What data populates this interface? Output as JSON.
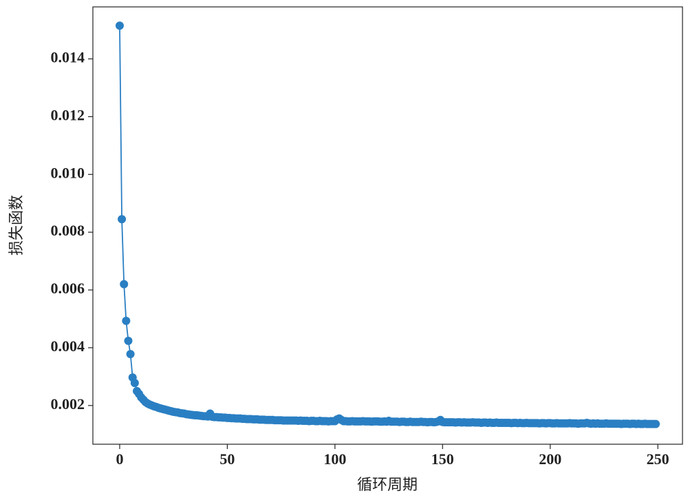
{
  "chart_data": {
    "type": "line",
    "x_label": "循环周期",
    "y_label": "损失函数",
    "xlim": [
      -12.45,
      261.45
    ],
    "ylim": [
      0.00066,
      0.0158
    ],
    "xticks": [
      0,
      50,
      100,
      150,
      200,
      250
    ],
    "yticks": [
      0.002,
      0.004,
      0.006,
      0.008,
      {
        "value": 0.01,
        "label": "0.010"
      },
      0.012,
      0.014
    ],
    "grid": false,
    "x": [
      0,
      1,
      2,
      3,
      4,
      5,
      6,
      7,
      8,
      9,
      10,
      11,
      12,
      13,
      14,
      15,
      16,
      17,
      18,
      19,
      20,
      21,
      22,
      23,
      24,
      25,
      26,
      27,
      28,
      29,
      30,
      31,
      32,
      33,
      34,
      35,
      36,
      37,
      38,
      39,
      40,
      41,
      42,
      43,
      44,
      45,
      46,
      47,
      48,
      49,
      50,
      51,
      52,
      53,
      54,
      55,
      56,
      57,
      58,
      59,
      60,
      61,
      62,
      63,
      64,
      65,
      66,
      67,
      68,
      69,
      70,
      71,
      72,
      73,
      74,
      75,
      76,
      77,
      78,
      79,
      80,
      81,
      82,
      83,
      84,
      85,
      86,
      87,
      88,
      89,
      90,
      91,
      92,
      93,
      94,
      95,
      96,
      97,
      98,
      99,
      100,
      101,
      102,
      103,
      104,
      105,
      106,
      107,
      108,
      109,
      110,
      111,
      112,
      113,
      114,
      115,
      116,
      117,
      118,
      119,
      120,
      121,
      122,
      123,
      124,
      125,
      126,
      127,
      128,
      129,
      130,
      131,
      132,
      133,
      134,
      135,
      136,
      137,
      138,
      139,
      140,
      141,
      142,
      143,
      144,
      145,
      146,
      147,
      148,
      149,
      150,
      151,
      152,
      153,
      154,
      155,
      156,
      157,
      158,
      159,
      160,
      161,
      162,
      163,
      164,
      165,
      166,
      167,
      168,
      169,
      170,
      171,
      172,
      173,
      174,
      175,
      176,
      177,
      178,
      179,
      180,
      181,
      182,
      183,
      184,
      185,
      186,
      187,
      188,
      189,
      190,
      191,
      192,
      193,
      194,
      195,
      196,
      197,
      198,
      199,
      200,
      201,
      202,
      203,
      204,
      205,
      206,
      207,
      208,
      209,
      210,
      211,
      212,
      213,
      214,
      215,
      216,
      217,
      218,
      219,
      220,
      221,
      222,
      223,
      224,
      225,
      226,
      227,
      228,
      229,
      230,
      231,
      232,
      233,
      234,
      235,
      236,
      237,
      238,
      239,
      240,
      241,
      242,
      243,
      244,
      245,
      246,
      247,
      248,
      249
    ],
    "series": [
      {
        "color": "#2a7fc3",
        "values": [
          0.01515,
          0.00845,
          0.0062,
          0.00493,
          0.00424,
          0.00378,
          0.00297,
          0.00278,
          0.0025,
          0.0024,
          0.00228,
          0.0022,
          0.00212,
          0.00207,
          0.00203,
          0.002,
          0.00197,
          0.00195,
          0.00192,
          0.0019,
          0.00188,
          0.00186,
          0.00184,
          0.00182,
          0.0018,
          0.00178,
          0.00177,
          0.00176,
          0.00174,
          0.00173,
          0.00172,
          0.0017,
          0.00169,
          0.00168,
          0.00167,
          0.00166,
          0.00166,
          0.00165,
          0.00164,
          0.00163,
          0.00163,
          0.00162,
          0.00172,
          0.00161,
          0.0016,
          0.0016,
          0.00159,
          0.00159,
          0.00158,
          0.00158,
          0.00157,
          0.00157,
          0.00156,
          0.00156,
          0.00155,
          0.00155,
          0.00155,
          0.00154,
          0.00154,
          0.00153,
          0.00153,
          0.00153,
          0.00152,
          0.00152,
          0.00152,
          0.00151,
          0.00151,
          0.00151,
          0.0015,
          0.0015,
          0.0015,
          0.0015,
          0.00149,
          0.00149,
          0.00149,
          0.00149,
          0.00148,
          0.00148,
          0.00148,
          0.00148,
          0.00148,
          0.00148,
          0.00148,
          0.00147,
          0.00148,
          0.00147,
          0.00147,
          0.00147,
          0.00146,
          0.00147,
          0.00147,
          0.00146,
          0.00146,
          0.00147,
          0.00146,
          0.00146,
          0.00146,
          0.00145,
          0.00146,
          0.00146,
          0.00146,
          0.00152,
          0.00155,
          0.0015,
          0.00146,
          0.00146,
          0.00145,
          0.00145,
          0.00146,
          0.00145,
          0.00145,
          0.00145,
          0.00145,
          0.00146,
          0.00145,
          0.00145,
          0.00145,
          0.00144,
          0.00145,
          0.00145,
          0.00145,
          0.00144,
          0.00144,
          0.00145,
          0.00144,
          0.00147,
          0.00144,
          0.00144,
          0.00144,
          0.00144,
          0.00143,
          0.00144,
          0.00144,
          0.00143,
          0.00143,
          0.00144,
          0.00143,
          0.00143,
          0.00143,
          0.00143,
          0.00144,
          0.00143,
          0.00143,
          0.00142,
          0.00143,
          0.00143,
          0.00142,
          0.00143,
          0.00145,
          0.0015,
          0.00143,
          0.00142,
          0.00142,
          0.00142,
          0.00142,
          0.00142,
          0.00141,
          0.00142,
          0.00142,
          0.00141,
          0.00142,
          0.00141,
          0.00141,
          0.00141,
          0.00142,
          0.00141,
          0.00141,
          0.00141,
          0.0014,
          0.00141,
          0.00141,
          0.0014,
          0.00141,
          0.0014,
          0.0014,
          0.00141,
          0.0014,
          0.0014,
          0.0014,
          0.0014,
          0.0014,
          0.0014,
          0.00139,
          0.0014,
          0.0014,
          0.00139,
          0.0014,
          0.00139,
          0.00139,
          0.0014,
          0.00139,
          0.00139,
          0.00139,
          0.00139,
          0.00139,
          0.00138,
          0.00139,
          0.00139,
          0.00138,
          0.00139,
          0.00139,
          0.00138,
          0.00138,
          0.00139,
          0.00138,
          0.00138,
          0.00138,
          0.00138,
          0.00138,
          0.00139,
          0.00138,
          0.00138,
          0.00138,
          0.00137,
          0.00138,
          0.00138,
          0.00138,
          0.0014,
          0.00138,
          0.00137,
          0.00138,
          0.00137,
          0.00138,
          0.00137,
          0.00137,
          0.00137,
          0.00138,
          0.00137,
          0.00137,
          0.00137,
          0.00137,
          0.00137,
          0.00137,
          0.00136,
          0.00137,
          0.00137,
          0.00137,
          0.00136,
          0.00137,
          0.00137,
          0.00136,
          0.00137,
          0.00136,
          0.00136,
          0.00137,
          0.00136,
          0.00136,
          0.00136,
          0.00136,
          0.00136
        ]
      }
    ]
  }
}
